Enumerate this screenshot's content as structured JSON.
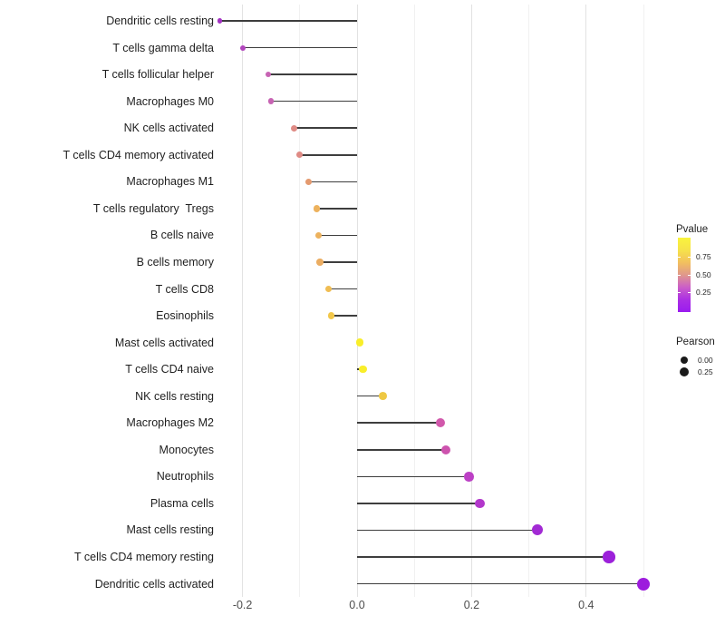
{
  "chart_data": {
    "type": "scatter",
    "variant": "horizontal lollipop (segment + point)",
    "title": "",
    "xlabel": "",
    "ylabel": "",
    "xlim": [
      -0.28,
      0.55
    ],
    "x_tick_labels": [
      "-0.2",
      "0.0",
      "0.2",
      "0.4"
    ],
    "x_major_ticks": [
      -0.2,
      0.0,
      0.2,
      0.4
    ],
    "x_minor_ticks": [
      -0.1,
      0.1,
      0.3,
      0.5
    ],
    "grid": "vertical major+minor, light gray on white",
    "legend_position": "right",
    "points": [
      {
        "label": "Dendritic cells resting",
        "pearson": -0.24,
        "pvalue": 0.15,
        "color": "#a332c3"
      },
      {
        "label": "T cells gamma delta",
        "pearson": -0.2,
        "pvalue": 0.2,
        "color": "#b246bd"
      },
      {
        "label": "T cells follicular helper",
        "pearson": -0.155,
        "pvalue": 0.28,
        "color": "#c763b3"
      },
      {
        "label": "Macrophages M0",
        "pearson": -0.15,
        "pvalue": 0.28,
        "color": "#c763b3"
      },
      {
        "label": "NK cells activated",
        "pearson": -0.11,
        "pvalue": 0.45,
        "color": "#df8b85"
      },
      {
        "label": "T cells CD4 memory activated",
        "pearson": -0.1,
        "pvalue": 0.45,
        "color": "#df8b85"
      },
      {
        "label": "Macrophages M1",
        "pearson": -0.085,
        "pvalue": 0.55,
        "color": "#e49a6f"
      },
      {
        "label": "T cells regulatory  Tregs",
        "pearson": -0.07,
        "pvalue": 0.65,
        "color": "#edb25d"
      },
      {
        "label": "B cells naive",
        "pearson": -0.067,
        "pvalue": 0.65,
        "color": "#edb25d"
      },
      {
        "label": "B cells memory",
        "pearson": -0.065,
        "pvalue": 0.63,
        "color": "#ebad62"
      },
      {
        "label": "T cells CD8",
        "pearson": -0.05,
        "pvalue": 0.72,
        "color": "#f0bd53"
      },
      {
        "label": "Eosinophils",
        "pearson": -0.045,
        "pvalue": 0.78,
        "color": "#f2c74a"
      },
      {
        "label": "Mast cells activated",
        "pearson": 0.005,
        "pvalue": 0.95,
        "color": "#f9ee2a"
      },
      {
        "label": "T cells CD4 naive",
        "pearson": 0.01,
        "pvalue": 0.95,
        "color": "#f9ee2a"
      },
      {
        "label": "NK cells resting",
        "pearson": 0.045,
        "pvalue": 0.8,
        "color": "#eec843"
      },
      {
        "label": "Macrophages M2",
        "pearson": 0.145,
        "pvalue": 0.33,
        "color": "#d158ab"
      },
      {
        "label": "Monocytes",
        "pearson": 0.155,
        "pvalue": 0.32,
        "color": "#cd53ae"
      },
      {
        "label": "Neutrophils",
        "pearson": 0.195,
        "pvalue": 0.22,
        "color": "#bc40c5"
      },
      {
        "label": "Plasma cells",
        "pearson": 0.215,
        "pvalue": 0.18,
        "color": "#b237cb"
      },
      {
        "label": "Mast cells resting",
        "pearson": 0.315,
        "pvalue": 0.12,
        "color": "#a22ad4"
      },
      {
        "label": "T cells CD4 memory resting",
        "pearson": 0.44,
        "pvalue": 0.08,
        "color": "#9c21da"
      },
      {
        "label": "Dendritic cells activated",
        "pearson": 0.5,
        "pvalue": 0.05,
        "color": "#9d1cdd"
      }
    ],
    "legends": {
      "pvalue": {
        "title": "Pvalue",
        "tick_labels": [
          "0.75",
          "0.50",
          "0.25"
        ],
        "gradient_stops": [
          "#f9f43c",
          "#f6e24a",
          "#f2c05e",
          "#e0988c",
          "#cb5ec8",
          "#ab2fe4",
          "#9a1bef"
        ]
      },
      "pearson": {
        "title": "Pearson",
        "items": [
          {
            "label": "0.00",
            "size": 8
          },
          {
            "label": "0.25",
            "size": 10
          }
        ]
      }
    }
  }
}
